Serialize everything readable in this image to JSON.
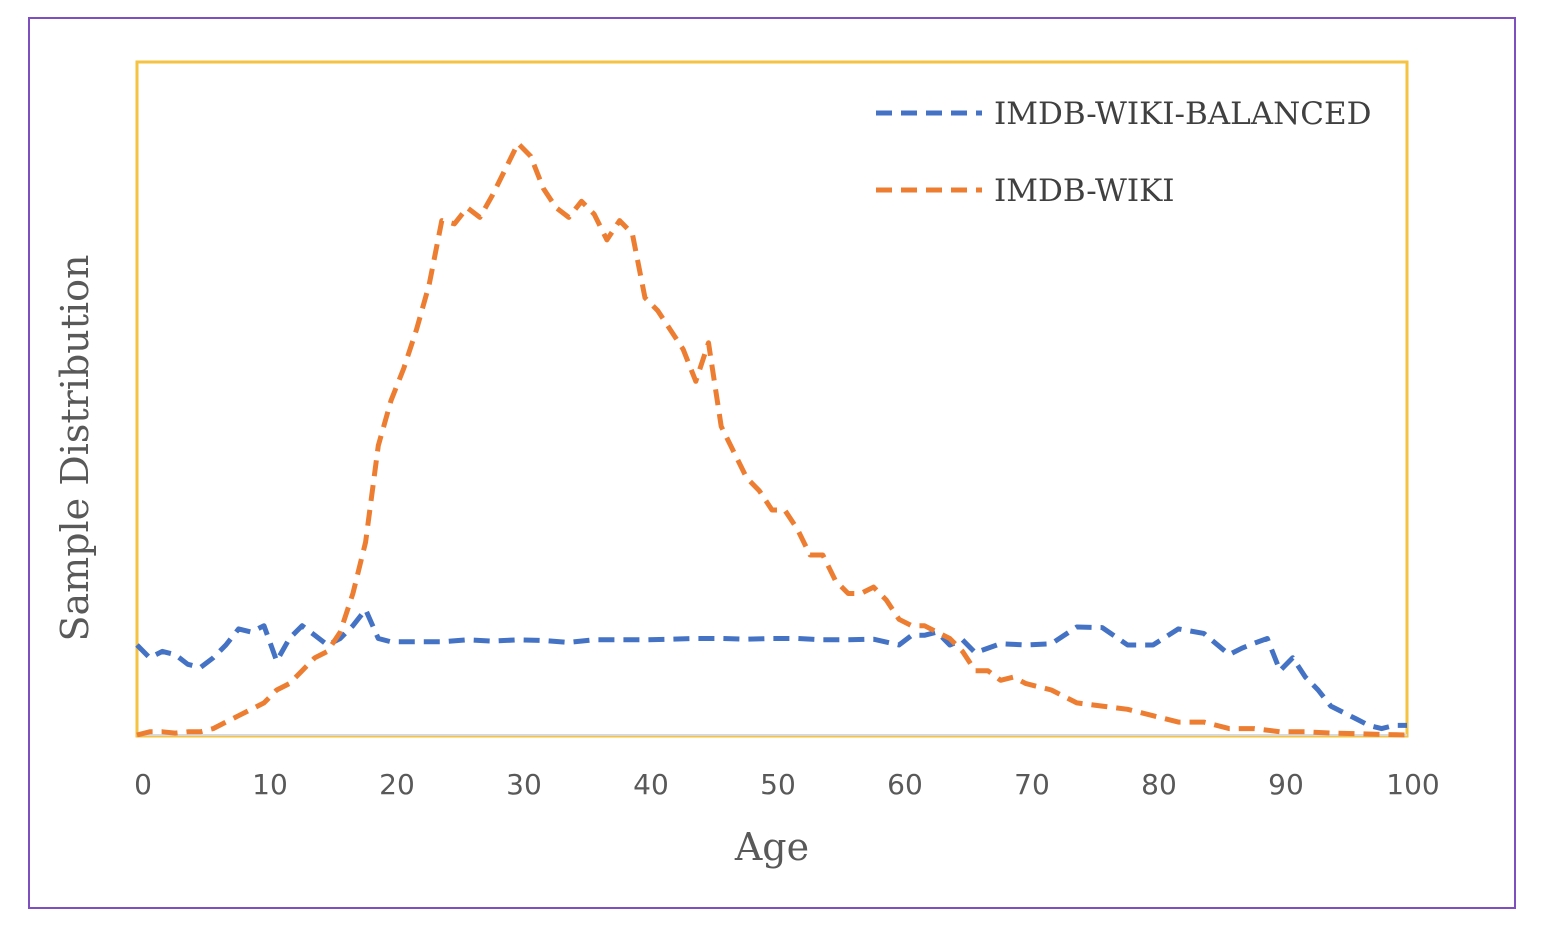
{
  "chart_data": {
    "type": "line",
    "title": "",
    "xlabel": "Age",
    "ylabel": "Sample Distribution",
    "xlim": [
      0,
      100
    ],
    "ylim": [
      0,
      100
    ],
    "xticks": [
      "0",
      "10",
      "20",
      "30",
      "40",
      "50",
      "60",
      "70",
      "80",
      "90",
      "100"
    ],
    "legend": "top-right",
    "grid": false,
    "colors": {
      "frame": "#7f4fc0",
      "plot_border": "#f5c242",
      "axis": "#d9d9d9",
      "text": "#595959"
    },
    "series": [
      {
        "name": "IMDB-WIKI-BALANCED",
        "color": "#4472c4",
        "x": [
          0,
          1,
          2,
          3,
          4,
          5,
          6,
          7,
          8,
          9,
          10,
          11,
          12,
          13,
          14,
          15,
          16,
          17,
          18,
          19,
          20,
          22,
          24,
          26,
          28,
          30,
          32,
          34,
          36,
          38,
          40,
          42,
          44,
          46,
          48,
          50,
          52,
          54,
          56,
          58,
          60,
          61,
          62,
          63,
          64,
          65,
          66,
          68,
          70,
          72,
          74,
          76,
          78,
          80,
          82,
          84,
          86,
          87,
          88,
          89,
          90,
          91,
          92,
          93,
          94,
          95,
          96,
          97,
          98,
          99,
          100
        ],
        "y": [
          14,
          12,
          13,
          12.5,
          11,
          10.5,
          12,
          14,
          16.5,
          16,
          17,
          11.5,
          15,
          17,
          15.5,
          14,
          15,
          17,
          19.5,
          15,
          14.5,
          14.5,
          14.5,
          14.8,
          14.6,
          14.8,
          14.7,
          14.4,
          14.8,
          14.8,
          14.8,
          14.9,
          15,
          15,
          14.9,
          15,
          15,
          14.8,
          14.8,
          14.9,
          14,
          15.5,
          15.5,
          16,
          14,
          14.8,
          12.8,
          14.2,
          14,
          14.2,
          16.8,
          16.7,
          14,
          14,
          16.5,
          15.8,
          12.5,
          13.5,
          14.3,
          15,
          10,
          12,
          9,
          7,
          4.5,
          3.5,
          2.5,
          1.5,
          1,
          1.5,
          1.5
        ]
      },
      {
        "name": "IMDB-WIKI",
        "color": "#ed7d31",
        "x": [
          0,
          1,
          2,
          3,
          4,
          5,
          6,
          7,
          8,
          9,
          10,
          11,
          12,
          13,
          14,
          15,
          16,
          17,
          18,
          19,
          20,
          21,
          22,
          23,
          24,
          25,
          26,
          27,
          28,
          29,
          30,
          31,
          32,
          33,
          34,
          35,
          36,
          37,
          38,
          39,
          40,
          41,
          42,
          43,
          44,
          45,
          46,
          47,
          48,
          49,
          50,
          51,
          52,
          53,
          54,
          55,
          56,
          57,
          58,
          59,
          60,
          61,
          62,
          63,
          64,
          65,
          66,
          67,
          68,
          69,
          70,
          72,
          74,
          76,
          78,
          80,
          82,
          84,
          86,
          88,
          90,
          92,
          94,
          96,
          98,
          100
        ],
        "y": [
          0,
          0.5,
          0.5,
          0.3,
          0.5,
          0.5,
          1,
          2,
          3,
          4,
          5,
          7,
          8,
          10,
          12,
          13,
          16,
          22,
          30,
          45,
          52,
          57,
          63,
          70,
          80,
          79.5,
          82,
          80.5,
          84,
          88,
          92,
          90,
          85,
          82,
          80.5,
          83,
          81,
          77,
          80,
          78,
          68,
          66,
          63,
          60,
          55,
          61,
          48,
          44,
          40,
          38,
          35,
          35,
          32,
          28,
          28,
          24,
          22,
          22,
          23,
          21,
          18,
          17,
          17,
          16,
          15,
          13,
          10,
          10,
          8.5,
          9,
          8,
          7,
          5,
          4.5,
          4,
          3,
          2,
          2,
          1,
          1,
          0.5,
          0.5,
          0.3,
          0.2,
          0.1,
          0
        ]
      }
    ]
  }
}
